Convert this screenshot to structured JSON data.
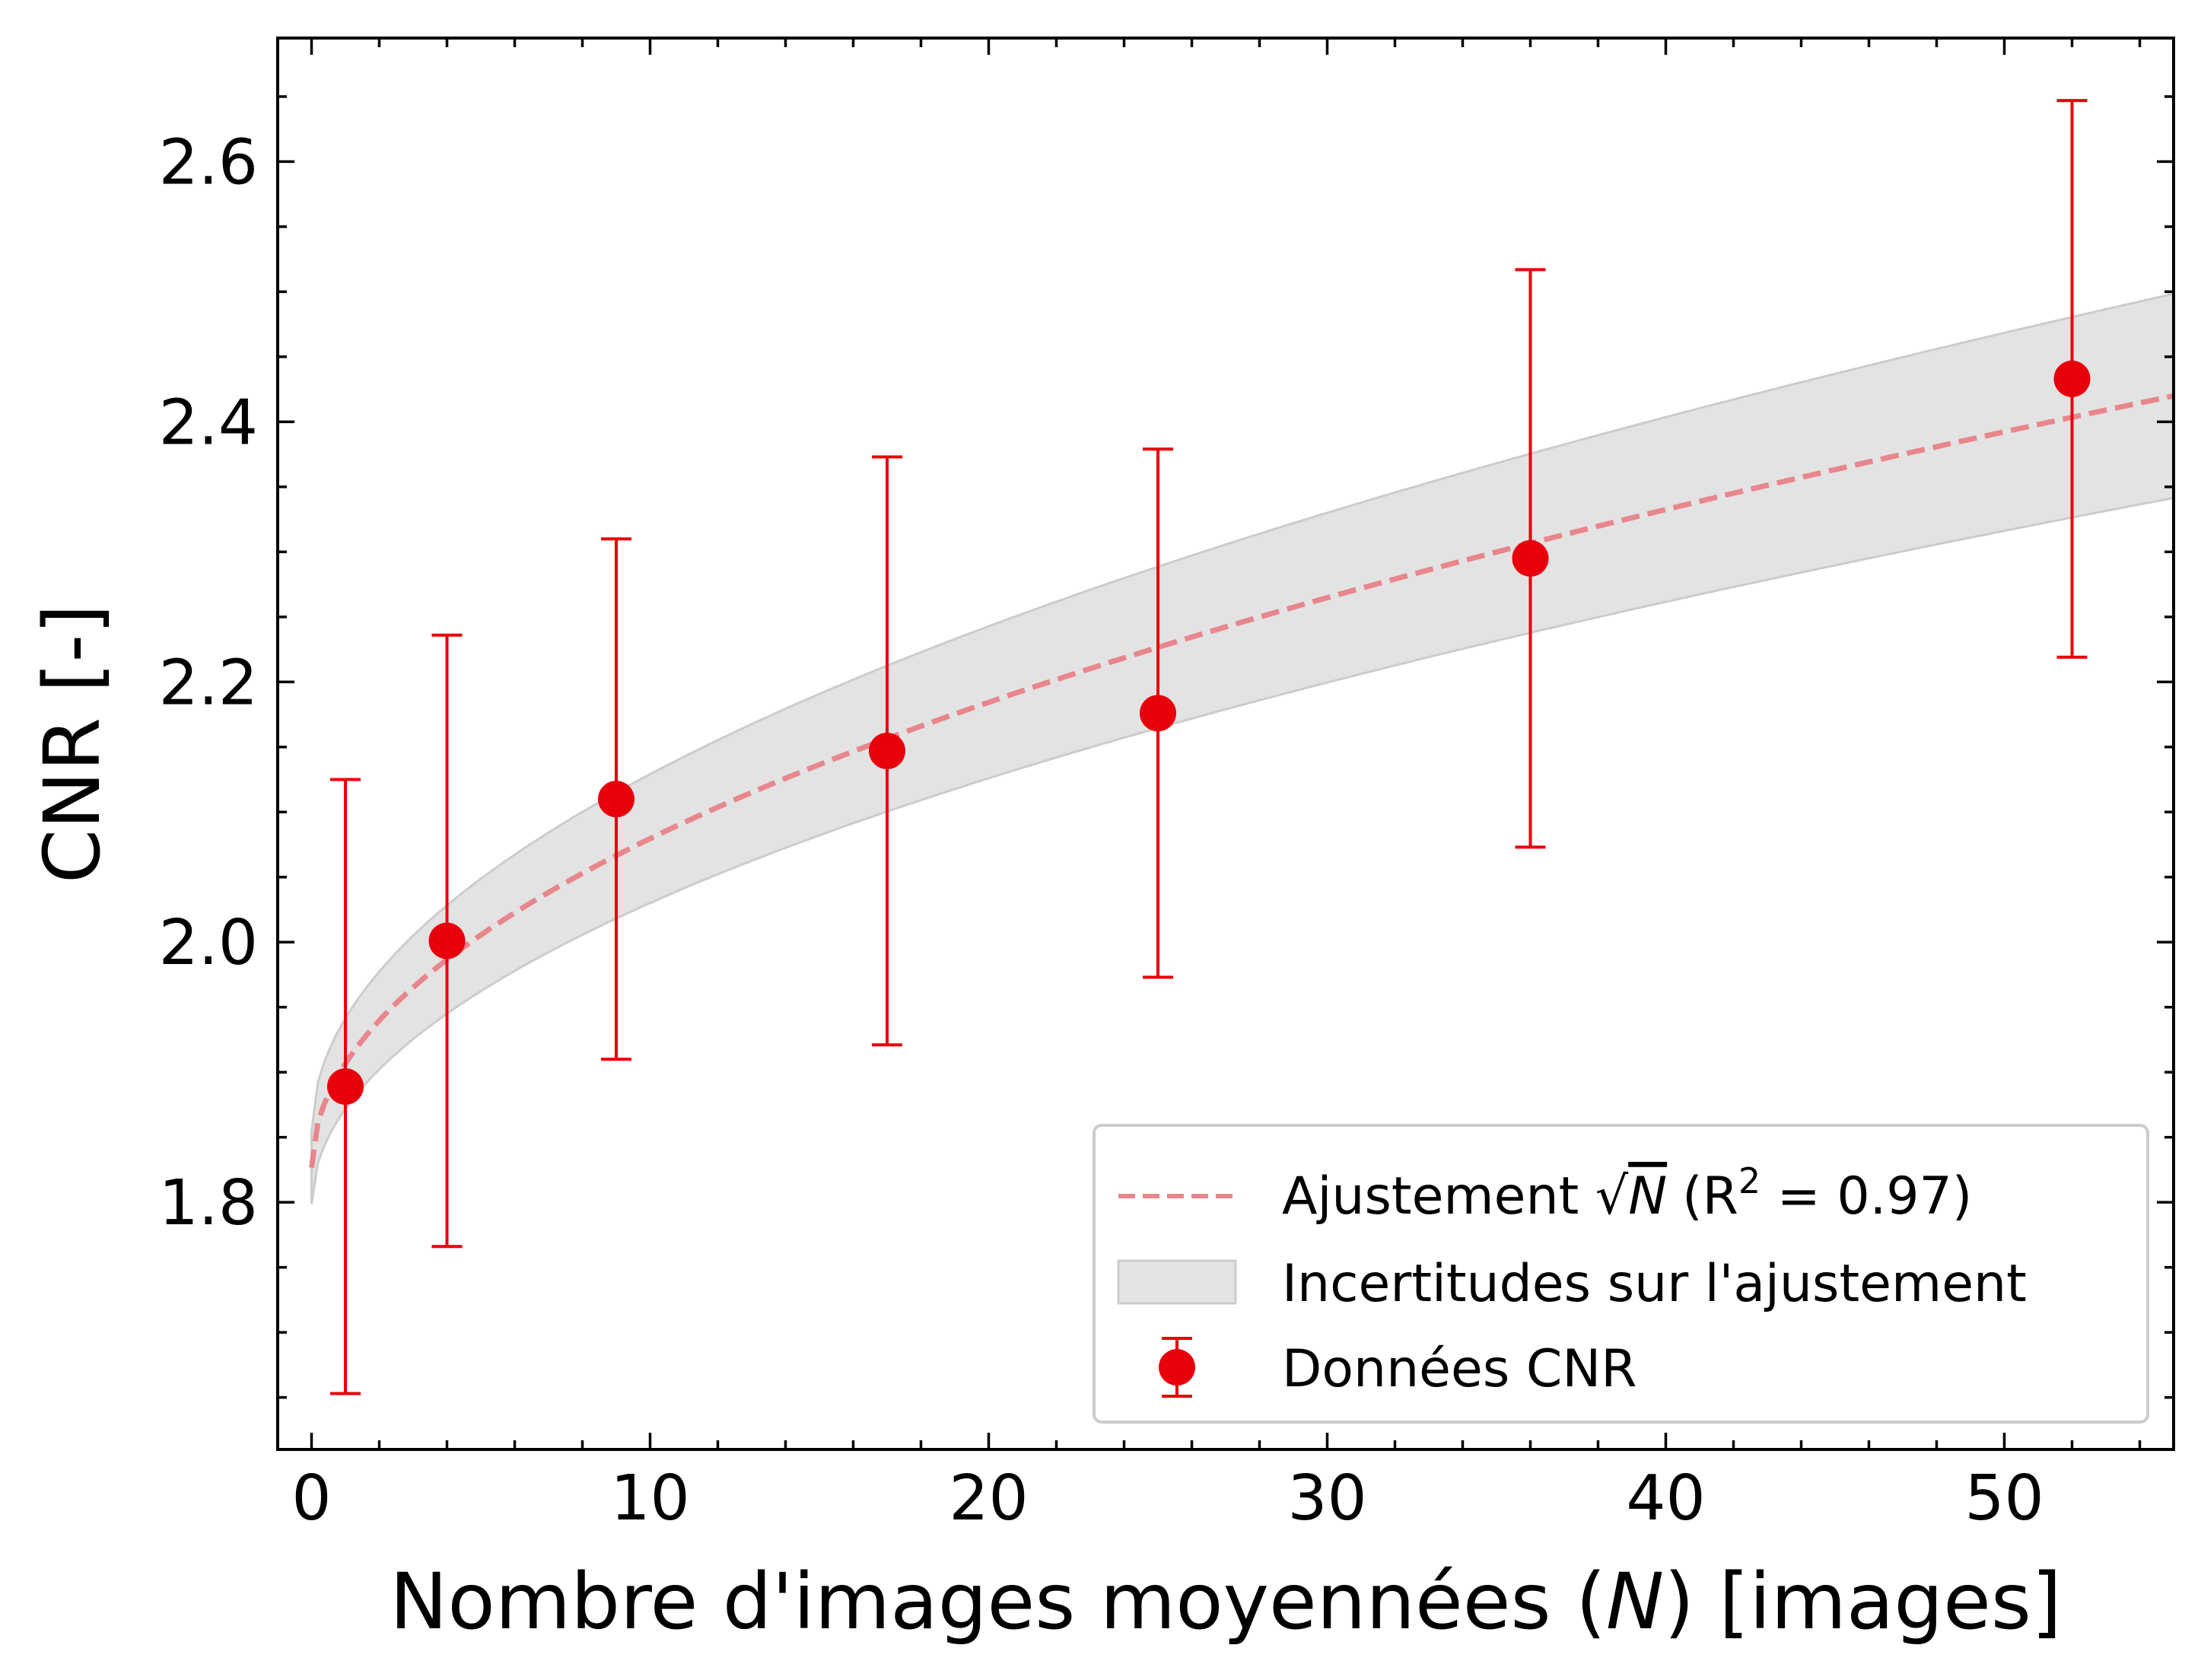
{
  "chart_data": {
    "type": "scatter",
    "xlabel": {
      "prefix": "Nombre d'images moyennées (",
      "var": "N",
      "suffix": ") [images]"
    },
    "ylabel": "CNR [-]",
    "xlim": [
      -1,
      55
    ],
    "ylim": [
      1.61,
      2.695
    ],
    "xticks": [
      0,
      10,
      20,
      30,
      40,
      50
    ],
    "yticks": [
      1.8,
      2.0,
      2.2,
      2.4,
      2.6
    ],
    "xtick_labels": [
      "0",
      "10",
      "20",
      "30",
      "40",
      "50"
    ],
    "ytick_labels": [
      "1.8",
      "2.0",
      "2.2",
      "2.4",
      "2.6"
    ],
    "x_minor_step": 2,
    "y_minor_step": 0.05,
    "grid": false,
    "legend_position": "lower-right",
    "colors": {
      "data": "#e8000b",
      "fit": "#e8868c",
      "band_fill": "#e3e3e3",
      "band_edge": "#cccccc"
    },
    "series": [
      {
        "name": "Données CNR",
        "kind": "errorbar",
        "x": [
          1,
          4,
          9,
          17,
          25,
          36,
          52
        ],
        "y": [
          1.889,
          2.001,
          2.11,
          2.147,
          2.176,
          2.295,
          2.433
        ],
        "err": [
          0.236,
          0.235,
          0.2,
          0.226,
          0.203,
          0.222,
          0.214
        ]
      },
      {
        "name": "Ajustement √N (R² = 0.97)",
        "kind": "fit",
        "model": "a + b*sqrt(N)",
        "a": 1.8266,
        "b": 0.08,
        "a_uncertainty": 0.028,
        "b_uncertainty": 0.0068,
        "x_range": [
          0,
          55
        ]
      },
      {
        "name": "Incertitudes sur l'ajustement",
        "kind": "band"
      }
    ],
    "legend": {
      "fit": {
        "prefix": "Ajustement ",
        "var": "N",
        "r_text": "(R",
        "r_exp": "2",
        "r_value": " = 0.97)"
      },
      "band": "Incertitudes sur l'ajustement",
      "data": "Données CNR"
    }
  }
}
